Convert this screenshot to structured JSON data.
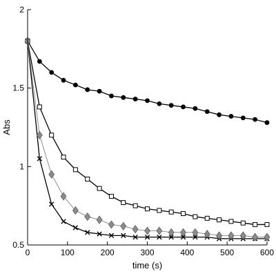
{
  "chart_data": {
    "type": "line",
    "xlabel": "time (s)",
    "ylabel": "Abs",
    "xlim": [
      0,
      600
    ],
    "ylim": [
      0.5,
      2
    ],
    "x_ticks": [
      0,
      100,
      200,
      300,
      400,
      500,
      600
    ],
    "y_ticks": [
      0.5,
      1,
      1.5,
      2
    ],
    "x_tick_labels": [
      "0",
      "100",
      "200",
      "300",
      "400",
      "500",
      "600"
    ],
    "y_tick_labels": [
      "0.5",
      "1",
      "1.5",
      "2"
    ],
    "grid": false,
    "legend": "none",
    "x": [
      0,
      30,
      60,
      90,
      120,
      150,
      180,
      210,
      240,
      270,
      300,
      330,
      360,
      390,
      420,
      450,
      480,
      510,
      540,
      570,
      600
    ],
    "series": [
      {
        "marker": "filled-circle",
        "color": "#000000",
        "values": [
          1.8,
          1.67,
          1.6,
          1.55,
          1.52,
          1.49,
          1.48,
          1.45,
          1.44,
          1.43,
          1.42,
          1.4,
          1.39,
          1.38,
          1.37,
          1.35,
          1.33,
          1.32,
          1.31,
          1.3,
          1.28
        ]
      },
      {
        "marker": "open-square",
        "color": "#000000",
        "values": [
          1.8,
          1.38,
          1.2,
          1.06,
          0.98,
          0.92,
          0.86,
          0.81,
          0.77,
          0.75,
          0.73,
          0.72,
          0.71,
          0.7,
          0.68,
          0.67,
          0.66,
          0.65,
          0.64,
          0.63,
          0.63
        ]
      },
      {
        "marker": "gray-diamond",
        "color": "#808080",
        "values": [
          1.8,
          1.2,
          0.95,
          0.81,
          0.72,
          0.68,
          0.66,
          0.63,
          0.62,
          0.6,
          0.59,
          0.59,
          0.58,
          0.58,
          0.58,
          0.57,
          0.56,
          0.56,
          0.56,
          0.55,
          0.55
        ]
      },
      {
        "marker": "cross",
        "color": "#000000",
        "values": [
          1.8,
          1.05,
          0.76,
          0.65,
          0.61,
          0.58,
          0.57,
          0.56,
          0.56,
          0.55,
          0.55,
          0.55,
          0.55,
          0.55,
          0.55,
          0.55,
          0.54,
          0.54,
          0.54,
          0.54,
          0.54
        ]
      }
    ]
  }
}
